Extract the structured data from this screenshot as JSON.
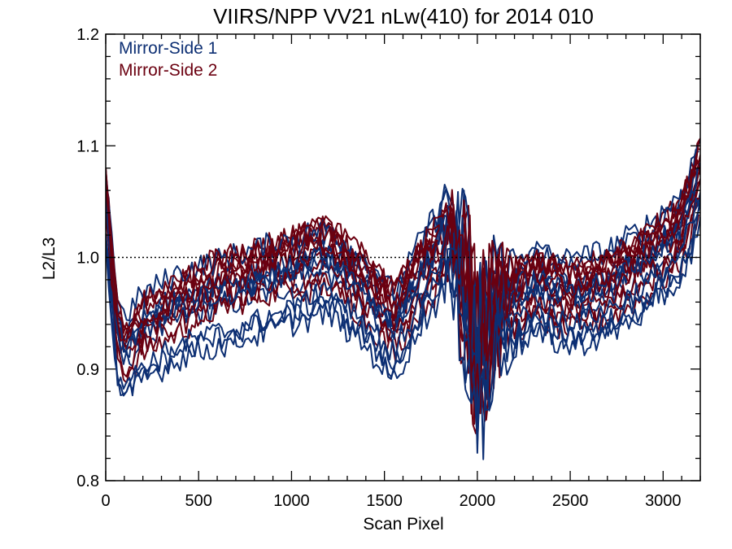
{
  "chart_data": {
    "type": "line",
    "title": "VIIRS/NPP VV21 nLw(410) for 2014 010",
    "xlabel": "Scan Pixel",
    "ylabel": "L2/L3",
    "xlim": [
      0,
      3200
    ],
    "ylim": [
      0.8,
      1.2
    ],
    "xticks": [
      {
        "value": 0,
        "label": "0"
      },
      {
        "value": 500,
        "label": "500"
      },
      {
        "value": 1000,
        "label": "1000"
      },
      {
        "value": 1500,
        "label": "1500"
      },
      {
        "value": 2000,
        "label": "2000"
      },
      {
        "value": 2500,
        "label": "2500"
      },
      {
        "value": 3000,
        "label": "3000"
      }
    ],
    "yticks": [
      {
        "value": 0.8,
        "label": "0.8"
      },
      {
        "value": 0.9,
        "label": "0.9"
      },
      {
        "value": 1.0,
        "label": "1.0"
      },
      {
        "value": 1.1,
        "label": "1.1"
      },
      {
        "value": 1.2,
        "label": "1.2"
      }
    ],
    "reference_line": {
      "y": 1.0,
      "style": "dotted"
    },
    "grid": false,
    "legend": {
      "position": "top-left"
    },
    "series": [
      {
        "name": "Mirror-Side 1",
        "color": "#0d2f73",
        "values": [
          [
            0,
            1.05
          ],
          [
            60,
            0.93
          ],
          [
            100,
            0.91
          ],
          [
            200,
            0.93
          ],
          [
            400,
            0.95
          ],
          [
            600,
            0.96
          ],
          [
            800,
            0.97
          ],
          [
            1000,
            0.98
          ],
          [
            1200,
            0.99
          ],
          [
            1400,
            0.96
          ],
          [
            1550,
            0.93
          ],
          [
            1700,
            0.98
          ],
          [
            1850,
            1.02
          ],
          [
            1950,
            0.96
          ],
          [
            2000,
            0.9
          ],
          [
            2100,
            0.95
          ],
          [
            2300,
            0.97
          ],
          [
            2500,
            0.96
          ],
          [
            2700,
            0.97
          ],
          [
            2900,
            0.99
          ],
          [
            3100,
            1.02
          ],
          [
            3200,
            1.07
          ]
        ]
      },
      {
        "name": "Mirror-Side 2",
        "color": "#6b0010",
        "values": [
          [
            0,
            1.04
          ],
          [
            60,
            0.92
          ],
          [
            100,
            0.9
          ],
          [
            200,
            0.92
          ],
          [
            400,
            0.94
          ],
          [
            600,
            0.96
          ],
          [
            800,
            0.97
          ],
          [
            1000,
            0.98
          ],
          [
            1200,
            0.99
          ],
          [
            1400,
            0.96
          ],
          [
            1550,
            0.93
          ],
          [
            1700,
            0.97
          ],
          [
            1850,
            1.0
          ],
          [
            1950,
            0.95
          ],
          [
            2000,
            0.89
          ],
          [
            2100,
            0.94
          ],
          [
            2300,
            0.96
          ],
          [
            2500,
            0.95
          ],
          [
            2700,
            0.96
          ],
          [
            2900,
            0.98
          ],
          [
            3100,
            1.01
          ],
          [
            3200,
            1.06
          ]
        ]
      }
    ]
  }
}
